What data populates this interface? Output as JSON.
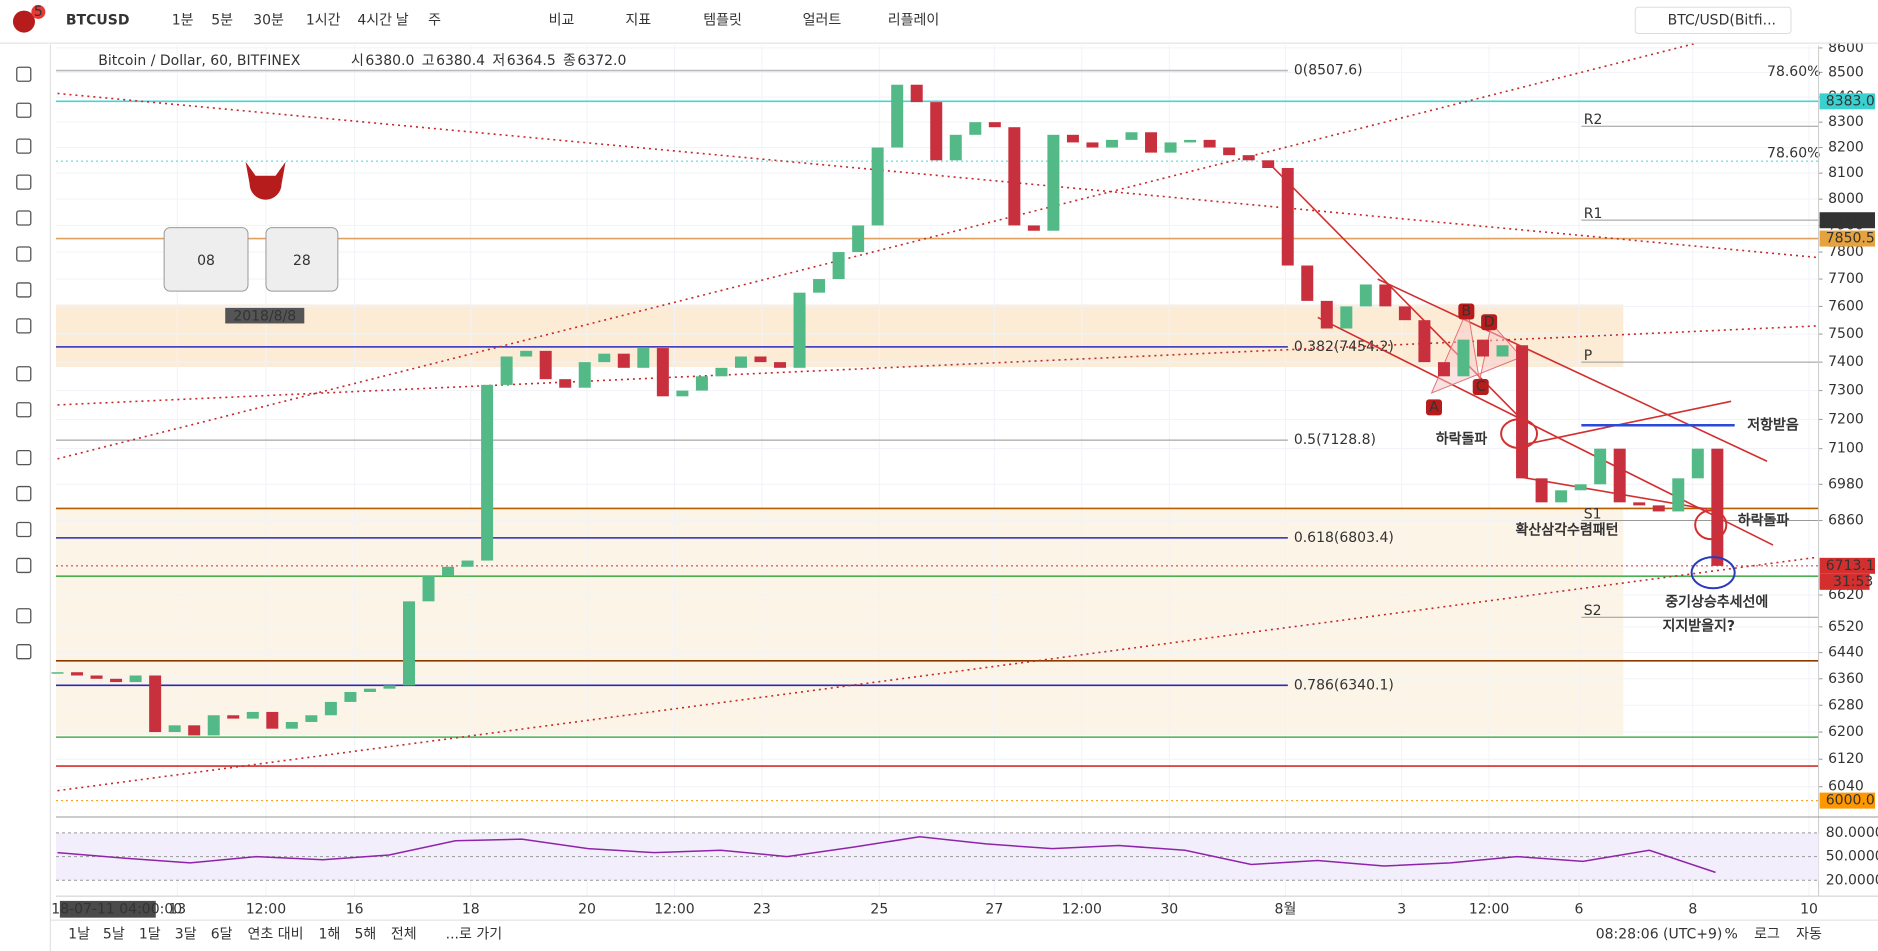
{
  "toolbar": {
    "symbol": "BTCUSD",
    "badge": "5",
    "intervals": [
      "1분",
      "5분",
      "30분",
      "1시간",
      "4시간",
      "날",
      "주"
    ],
    "tools": [
      "비교",
      "지표",
      "템플릿",
      "얼러트",
      "리플레이"
    ],
    "compare": "BTC/USD(Bitfi..."
  },
  "legend": {
    "name": "Bitcoin / Dollar, 60, BITFINEX",
    "ohlc": [
      {
        "key": "시",
        "value": "6380.0"
      },
      {
        "key": "고",
        "value": "6380.4"
      },
      {
        "key": "저",
        "value": "6364.5"
      },
      {
        "key": "종",
        "value": "6372.0"
      }
    ]
  },
  "clock": {
    "hours": "08",
    "minutes": "28",
    "date": "2018/8/8"
  },
  "chart_data": {
    "type": "candlestick",
    "up_color": "#53b987",
    "down_color": "#c8303e",
    "closes": [
      6380,
      6370,
      6360,
      6350,
      6370,
      6200,
      6220,
      6190,
      6250,
      6240,
      6260,
      6210,
      6230,
      6250,
      6290,
      6320,
      6330,
      6340,
      6600,
      6680,
      6710,
      6730,
      7320,
      7420,
      7440,
      7340,
      7310,
      7400,
      7430,
      7380,
      7450,
      7280,
      7300,
      7350,
      7380,
      7420,
      7400,
      7380,
      7650,
      7700,
      7800,
      7900,
      8200,
      8450,
      8380,
      8150,
      8250,
      8300,
      8280,
      7900,
      7880,
      8250,
      8220,
      8200,
      8230,
      8260,
      8180,
      8220,
      8230,
      8200,
      8170,
      8150,
      8120,
      7750,
      7620,
      7520,
      7600,
      7680,
      7600,
      7550,
      7400,
      7350,
      7480,
      7420,
      7460,
      7000,
      6920,
      6960,
      6980,
      7100,
      6920,
      6910,
      6890,
      7000,
      7100,
      6713
    ],
    "ylim": [
      5960,
      8610
    ],
    "log_scale": true,
    "grid": true,
    "yticks": [
      8600,
      8500,
      8400,
      8300,
      8200,
      8100,
      8000,
      7900,
      7800,
      7700,
      7600,
      7500,
      7400,
      7300,
      7200,
      7100,
      6980,
      6860,
      6620,
      6520,
      6440,
      6360,
      6280,
      6200,
      6120,
      6040
    ],
    "x_labels": [
      "2018-07-11 04:00:00",
      "13",
      "12:00",
      "16",
      "18",
      "20",
      "12:00",
      "23",
      "25",
      "27",
      "12:00",
      "30",
      "8월",
      "3",
      "12:00",
      "6",
      "8",
      "10"
    ],
    "zones": [
      {
        "low": 7383,
        "high": 7607,
        "color": "#fbe7cc"
      },
      {
        "low": 6190,
        "high": 6900,
        "color": "#fdf1e2"
      }
    ],
    "levels": [
      {
        "value": 8383,
        "color": "#44d6d6"
      },
      {
        "value": 8147,
        "color": "#44d6d6",
        "dotted": true
      },
      {
        "value": 7850.5,
        "color": "#e0a060"
      },
      {
        "value": 6900,
        "color": "#b85c00"
      },
      {
        "value": 6680,
        "color": "#4caf50"
      },
      {
        "value": 6415,
        "color": "#8b3a00"
      },
      {
        "value": 6185,
        "color": "#4caf50"
      },
      {
        "value": 6100,
        "color": "#d32f2f"
      },
      {
        "value": 6000,
        "color": "#ff9800",
        "dotted": true
      },
      {
        "value": 6713.1,
        "color": "#d32f2f",
        "dotted": true
      }
    ],
    "fib": [
      {
        "label": "0(8507.6)",
        "value": 8507.6,
        "color": "#bbbbbb"
      },
      {
        "label": "0.382(7454.2)",
        "value": 7454.2,
        "color": "#2a2ab8"
      },
      {
        "label": "0.5(7128.8)",
        "value": 7128.8,
        "color": "#bbbbbb"
      },
      {
        "label": "0.618(6803.4)",
        "value": 6803.4,
        "color": "#2a2ab8"
      },
      {
        "label": "0.786(6340.1)",
        "value": 6340.1,
        "color": "#2a2ab8"
      }
    ],
    "ext_labels": [
      {
        "label": "78.60%",
        "color": "#f0b070"
      },
      {
        "label": "78.60%",
        "color": "#22c0c0"
      }
    ],
    "pivots": [
      {
        "label": "R2",
        "value": 8284
      },
      {
        "label": "R1",
        "value": 7920
      },
      {
        "label": "P",
        "value": 7400
      },
      {
        "label": "S1",
        "value": 6860
      },
      {
        "label": "S2",
        "value": 6550
      }
    ],
    "price_labels": [
      {
        "value": 8383,
        "label": "8383.0",
        "color": "#3ad0d0"
      },
      {
        "value": 7919.7,
        "label": "7919.7",
        "color": "#333333"
      },
      {
        "value": 7850.5,
        "label": "7850.5",
        "color": "#e6a23c"
      },
      {
        "value": 6713.1,
        "label": "6713.1",
        "color": "#d32f2f"
      },
      {
        "value": 6000,
        "label": "6000.0",
        "color": "#ff9800"
      }
    ],
    "countdown": "31:53",
    "annotations": [
      "하락돌파",
      "저항받음",
      "하락돌파",
      "확산삼각수렴패턴",
      "중기상승추세선에",
      "지지받을지?"
    ],
    "points": [
      "A",
      "B",
      "C",
      "D"
    ],
    "rsi": {
      "values": [
        55,
        48,
        42,
        50,
        46,
        52,
        70,
        72,
        60,
        55,
        58,
        50,
        62,
        75,
        66,
        60,
        64,
        58,
        40,
        45,
        38,
        42,
        50,
        44,
        58,
        30
      ],
      "ylim": [
        0,
        100
      ],
      "yticks": [
        {
          "value": 80,
          "label": "80.0000"
        },
        {
          "value": 50,
          "label": "50.0000"
        },
        {
          "value": 20,
          "label": "20.0000"
        }
      ]
    }
  },
  "bottom": {
    "ranges": [
      "1날",
      "5날",
      "1달",
      "3달",
      "6달",
      "연초 대비",
      "1해",
      "5해",
      "전체"
    ],
    "goto": "...로 가기",
    "time": "08:28:06 (UTC+9)",
    "options": [
      "%",
      "로그",
      "자동"
    ]
  }
}
